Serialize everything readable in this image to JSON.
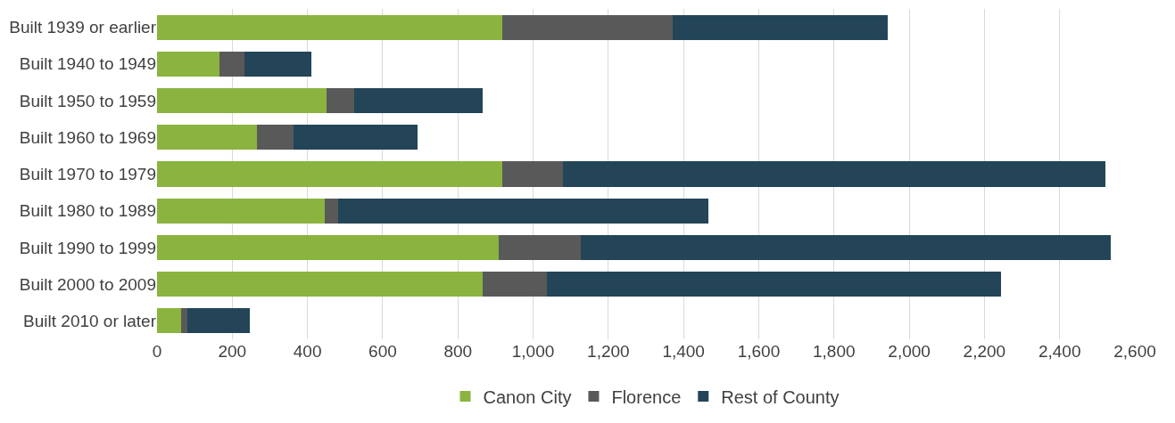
{
  "chart_data": {
    "type": "bar",
    "orientation": "horizontal",
    "stacked": true,
    "categories": [
      "Built 1939 or earlier",
      "Built 1940 to 1949",
      "Built 1950 to 1959",
      "Built 1960 to 1969",
      "Built 1970 to 1979",
      "Built 1980 to 1989",
      "Built 1990 to 1999",
      "Built 2000 to 2009",
      "Built 2010 or later"
    ],
    "series": [
      {
        "name": "Canon City",
        "color": "#8ab43f",
        "values": [
          919,
          165,
          450,
          265,
          917,
          445,
          909,
          867,
          65
        ]
      },
      {
        "name": "Florence",
        "color": "#595959",
        "values": [
          452,
          67,
          74,
          97,
          162,
          37,
          217,
          169,
          15
        ]
      },
      {
        "name": "Rest of County",
        "color": "#234557",
        "values": [
          572,
          178,
          343,
          330,
          1443,
          984,
          1411,
          1209,
          167
        ]
      }
    ],
    "xlim": [
      0,
      2600
    ],
    "xticks": [
      0,
      200,
      400,
      600,
      800,
      {
        "value": 1000,
        "label": "1,000"
      },
      {
        "value": 1200,
        "label": "1,200"
      },
      {
        "value": 1400,
        "label": "1,400"
      },
      {
        "value": 1600,
        "label": "1,600"
      },
      {
        "value": 1800,
        "label": "1,800"
      },
      {
        "value": 2000,
        "label": "2,000"
      },
      {
        "value": 2200,
        "label": "2,200"
      },
      {
        "value": 2400,
        "label": "2,400"
      },
      {
        "value": 2600,
        "label": "2,600"
      }
    ],
    "grid": "x",
    "legend": "bottom"
  }
}
